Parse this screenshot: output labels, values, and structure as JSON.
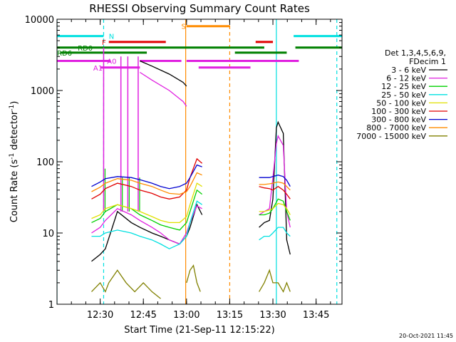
{
  "chart_data": {
    "type": "line",
    "title": "RHESSI Observing Summary Count Rates",
    "xlabel": "Start Time (21-Sep-11 12:15:22)",
    "ylabel_main": "Count Rate (s",
    "ylabel_sup1": "-1",
    "ylabel_mid": " detector",
    "ylabel_sup2": "-1",
    "ylabel_end": ")",
    "yscale": "log",
    "xlim": [
      12.25,
      13.9
    ],
    "ylim": [
      1,
      10000
    ],
    "grid": false,
    "x_tick_values": [
      12.5,
      12.75,
      13.0,
      13.25,
      13.5,
      13.75
    ],
    "x_tick_labels": [
      "12:30",
      "12:45",
      "13:00",
      "13:15",
      "13:30",
      "13:45"
    ],
    "y_tick_values": [
      1,
      10,
      100,
      1000,
      10000
    ],
    "y_tick_labels": [
      "1",
      "10",
      "100",
      "1000",
      "10000"
    ],
    "legend_header": [
      "Det 1,3,4,5,6,9,",
      "FDecim 1"
    ],
    "legend_position": "right",
    "footer": "20-Oct-2021 11:45",
    "series": [
      {
        "name": "3 - 6 keV",
        "color": "#000000",
        "segments": [
          {
            "x": [
              12.45,
              12.5,
              12.53,
              12.6,
              12.68,
              12.73,
              12.8,
              12.85,
              12.9,
              12.96,
              13.0,
              13.02,
              13.06,
              13.09
            ],
            "y": [
              4,
              5,
              6,
              20,
              14,
              12,
              10,
              9,
              8,
              7,
              9,
              12,
              25,
              18
            ]
          },
          {
            "x": [
              12.73,
              12.8,
              12.9,
              12.98,
              13.0
            ],
            "y": [
              2600,
              2200,
              1700,
              1300,
              1150
            ]
          },
          {
            "x": [
              13.42,
              13.45,
              13.48,
              13.5,
              13.52,
              13.53,
              13.56,
              13.58,
              13.6
            ],
            "y": [
              12,
              14,
              15,
              30,
              300,
              360,
              250,
              8,
              5
            ]
          }
        ]
      },
      {
        "name": "6 - 12 keV",
        "color": "#e020e0",
        "segments": [
          {
            "x": [
              12.45,
              12.5,
              12.53,
              12.6,
              12.68,
              12.73,
              12.8,
              12.85,
              12.9,
              12.96,
              13.0,
              13.02,
              13.06,
              13.09
            ],
            "y": [
              10,
              12,
              15,
              22,
              18,
              15,
              12,
              10,
              8,
              7,
              10,
              14,
              24,
              22
            ]
          },
          {
            "x": [
              12.73,
              12.8,
              12.9,
              12.98,
              13.0
            ],
            "y": [
              1800,
              1400,
              1000,
              700,
              600
            ]
          },
          {
            "x": [
              13.42,
              13.45,
              13.48,
              13.5,
              13.52,
              13.53,
              13.56,
              13.58,
              13.6
            ],
            "y": [
              18,
              20,
              22,
              60,
              180,
              230,
              170,
              20,
              12
            ]
          }
        ]
      },
      {
        "name": "12 - 25 keV",
        "color": "#00d000",
        "segments": [
          {
            "x": [
              12.45,
              12.5,
              12.53,
              12.6,
              12.68,
              12.73,
              12.8,
              12.85,
              12.9,
              12.96,
              13.0,
              13.02,
              13.06,
              13.09
            ],
            "y": [
              14,
              16,
              20,
              25,
              22,
              18,
              15,
              13,
              12,
              11,
              14,
              20,
              40,
              35
            ]
          },
          {
            "x": [
              13.42,
              13.45,
              13.48,
              13.5,
              13.53,
              13.56,
              13.58,
              13.6
            ],
            "y": [
              18,
              18,
              19,
              22,
              30,
              28,
              20,
              15
            ]
          }
        ]
      },
      {
        "name": "25 - 50 keV",
        "color": "#00e0e0",
        "segments": [
          {
            "x": [
              12.45,
              12.5,
              12.53,
              12.6,
              12.68,
              12.73,
              12.8,
              12.85,
              12.9,
              12.96,
              13.0,
              13.02,
              13.06,
              13.09
            ],
            "y": [
              9,
              9,
              10,
              11,
              10,
              9,
              8,
              7,
              6,
              7,
              9,
              14,
              28,
              25
            ]
          },
          {
            "x": [
              13.42,
              13.45,
              13.48,
              13.5,
              13.53,
              13.56,
              13.58,
              13.6
            ],
            "y": [
              8,
              9,
              9,
              10,
              12,
              12,
              10,
              9
            ]
          }
        ]
      },
      {
        "name": "50 - 100 keV",
        "color": "#e0e000",
        "segments": [
          {
            "x": [
              12.45,
              12.5,
              12.53,
              12.6,
              12.68,
              12.73,
              12.8,
              12.85,
              12.9,
              12.96,
              13.0,
              13.02,
              13.06,
              13.09
            ],
            "y": [
              16,
              18,
              22,
              25,
              22,
              20,
              17,
              15,
              14,
              14,
              17,
              25,
              50,
              45
            ]
          },
          {
            "x": [
              13.42,
              13.45,
              13.48,
              13.5,
              13.53,
              13.56,
              13.58,
              13.6
            ],
            "y": [
              20,
              20,
              21,
              22,
              26,
              25,
              22,
              18
            ]
          }
        ]
      },
      {
        "name": "100 - 300 keV",
        "color": "#e00000",
        "segments": [
          {
            "x": [
              12.45,
              12.5,
              12.53,
              12.6,
              12.68,
              12.73,
              12.8,
              12.85,
              12.9,
              12.96,
              13.0,
              13.02,
              13.06,
              13.09
            ],
            "y": [
              30,
              35,
              42,
              50,
              45,
              40,
              36,
              32,
              30,
              32,
              40,
              60,
              110,
              95
            ]
          },
          {
            "x": [
              13.42,
              13.45,
              13.48,
              13.5,
              13.53,
              13.56,
              13.58,
              13.6
            ],
            "y": [
              45,
              43,
              42,
              40,
              45,
              40,
              35,
              30
            ]
          }
        ]
      },
      {
        "name": "300 - 800 keV",
        "color": "#0000d0",
        "segments": [
          {
            "x": [
              12.45,
              12.5,
              12.53,
              12.6,
              12.68,
              12.73,
              12.8,
              12.85,
              12.9,
              12.96,
              13.0,
              13.02,
              13.06,
              13.09
            ],
            "y": [
              45,
              52,
              58,
              62,
              60,
              56,
              50,
              45,
              42,
              45,
              50,
              60,
              90,
              85
            ]
          },
          {
            "x": [
              13.42,
              13.45,
              13.48,
              13.5,
              13.53,
              13.56,
              13.58,
              13.6
            ],
            "y": [
              60,
              60,
              60,
              62,
              65,
              62,
              55,
              45
            ]
          }
        ]
      },
      {
        "name": "800 - 7000 keV",
        "color": "#ff8c00",
        "segments": [
          {
            "x": [
              12.45,
              12.5,
              12.53,
              12.6,
              12.68,
              12.73,
              12.8,
              12.85,
              12.9,
              12.96,
              13.0,
              13.02,
              13.06,
              13.09
            ],
            "y": [
              38,
              44,
              50,
              58,
              55,
              50,
              45,
              40,
              36,
              35,
              38,
              45,
              70,
              65
            ]
          },
          {
            "x": [
              13.42,
              13.45,
              13.48,
              13.5,
              13.53,
              13.56,
              13.58,
              13.6
            ],
            "y": [
              48,
              48,
              49,
              50,
              52,
              50,
              45,
              40
            ]
          }
        ]
      },
      {
        "name": "7000 - 15000 keV",
        "color": "#808000",
        "segments": [
          {
            "x": [
              12.45,
              12.5,
              12.53,
              12.55,
              12.6,
              12.65,
              12.7,
              12.75,
              12.8,
              12.85
            ],
            "y": [
              1.5,
              2,
              1.5,
              2,
              3,
              2,
              1.5,
              2,
              1.5,
              1.2
            ]
          },
          {
            "x": [
              13.0,
              13.02,
              13.04,
              13.06,
              13.08
            ],
            "y": [
              2,
              3,
              3.5,
              2,
              1.5
            ]
          },
          {
            "x": [
              13.42,
              13.45,
              13.48,
              13.5,
              13.53,
              13.56,
              13.58,
              13.6
            ],
            "y": [
              1.5,
              2,
              3,
              2,
              2,
              1.5,
              2,
              1.5
            ]
          }
        ]
      }
    ],
    "attenuator_spikes": [
      {
        "x": 12.52,
        "ymax": 4000
      },
      {
        "x": 12.62,
        "ymax": 3000
      },
      {
        "x": 12.66,
        "ymax": 3000
      },
      {
        "x": 12.72,
        "ymax": 3000
      }
    ],
    "state_bars": [
      {
        "label": "N",
        "color": "#00e0e0",
        "level": 5800,
        "intervals": [
          [
            12.25,
            12.52
          ],
          [
            13.62,
            13.9
          ]
        ],
        "label_x": 12.55
      },
      {
        "label": "S",
        "color": "#ff8c00",
        "level": 8000,
        "intervals": [
          [
            13.0,
            13.25
          ]
        ],
        "label_x": 12.97
      },
      {
        "label": "F",
        "color": "#e00000",
        "level": 4800,
        "intervals": [
          [
            12.55,
            12.88
          ],
          [
            13.4,
            13.5
          ]
        ],
        "label_x": 12.51
      },
      {
        "label": "RD0",
        "color": "#008000",
        "level": 4000,
        "intervals": [
          [
            12.25,
            13.25
          ],
          [
            13.25,
            13.45
          ],
          [
            13.63,
            13.9
          ]
        ],
        "label_x": 12.37
      },
      {
        "label": "RD6",
        "color": "#008000",
        "level": 3400,
        "intervals": [
          [
            12.27,
            12.77
          ],
          [
            13.28,
            13.58
          ]
        ],
        "label_x": 12.25
      },
      {
        "label": "A0",
        "color": "#e020e0",
        "level": 2600,
        "intervals": [
          [
            12.25,
            12.56
          ],
          [
            12.73,
            12.97
          ],
          [
            13.0,
            13.65
          ]
        ],
        "label_x": 12.54
      },
      {
        "label": "A1",
        "color": "#e020e0",
        "level": 2100,
        "intervals": [
          [
            12.5,
            12.73
          ],
          [
            13.07,
            13.37
          ]
        ],
        "label_x": 12.46
      }
    ],
    "vertical_markers": [
      {
        "x": 12.25,
        "color": "#00e0e0",
        "dash": false
      },
      {
        "x": 12.52,
        "color": "#00e0e0",
        "dash": true
      },
      {
        "x": 12.995,
        "color": "#ff8c00",
        "dash": false
      },
      {
        "x": 13.25,
        "color": "#ff8c00",
        "dash": true
      },
      {
        "x": 13.52,
        "color": "#00e0e0",
        "dash": false
      },
      {
        "x": 13.87,
        "color": "#00e0e0",
        "dash": true
      }
    ]
  }
}
